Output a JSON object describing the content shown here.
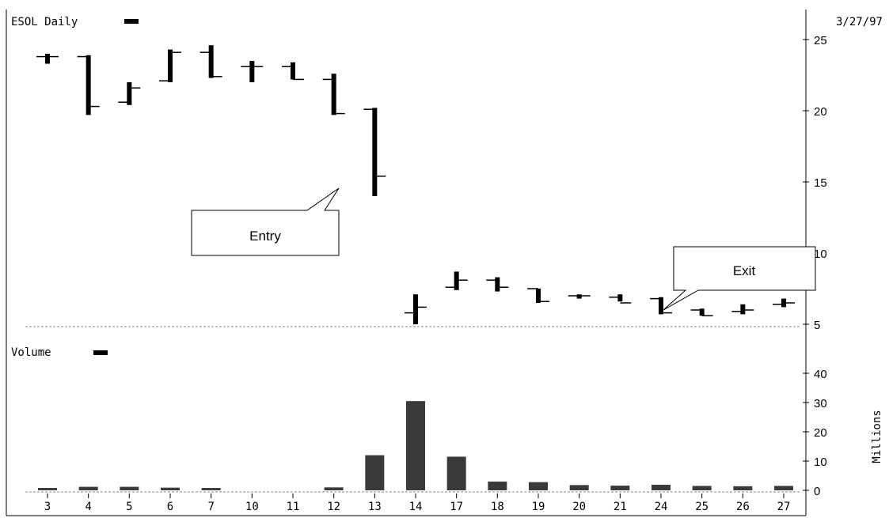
{
  "chart_data": [
    {
      "type": "ohlc",
      "title": "ESOL Daily",
      "date": "3/27/97",
      "ylim": [
        5,
        25
      ],
      "yticks": [
        5,
        10,
        15,
        20,
        25
      ],
      "categories": [
        "3",
        "4",
        "5",
        "6",
        "7",
        "10",
        "11",
        "12",
        "13",
        "14",
        "17",
        "18",
        "19",
        "20",
        "21",
        "24",
        "25",
        "26",
        "27"
      ],
      "series": [
        {
          "open": [
            23.8,
            23.8,
            20.6,
            22.1,
            24.1,
            23.1,
            23.1,
            22.2,
            20.1,
            5.8,
            7.6,
            8.1,
            7.5,
            7.0,
            6.9,
            6.8,
            6.0,
            5.9,
            6.4
          ],
          "high": [
            24.0,
            23.9,
            22.0,
            24.3,
            24.6,
            23.5,
            23.4,
            22.6,
            20.2,
            7.1,
            8.7,
            8.3,
            7.5,
            7.1,
            7.1,
            6.9,
            6.1,
            6.4,
            6.8
          ],
          "low": [
            23.3,
            19.7,
            20.4,
            22.0,
            22.3,
            22.0,
            22.2,
            19.7,
            14.0,
            5.0,
            7.4,
            7.3,
            6.5,
            6.8,
            6.6,
            5.7,
            5.6,
            5.7,
            6.2
          ],
          "close": [
            23.8,
            20.3,
            21.6,
            24.1,
            22.4,
            23.1,
            22.2,
            19.8,
            15.4,
            6.2,
            8.1,
            7.6,
            6.6,
            7.0,
            6.5,
            5.8,
            5.6,
            6.0,
            6.5
          ]
        }
      ],
      "annotations": [
        {
          "text": "Entry",
          "points_to_category": "13",
          "points_to_value": 15.4
        },
        {
          "text": "Exit",
          "points_to_category": "24",
          "points_to_value": 5.8
        }
      ]
    },
    {
      "type": "bar",
      "title": "Volume",
      "ylabel": "Millions",
      "ylim": [
        0,
        40
      ],
      "yticks": [
        0,
        10,
        20,
        30,
        40
      ],
      "categories": [
        "3",
        "4",
        "5",
        "6",
        "7",
        "10",
        "11",
        "12",
        "13",
        "14",
        "17",
        "18",
        "19",
        "20",
        "21",
        "24",
        "25",
        "26",
        "27"
      ],
      "values": [
        0.8,
        1.2,
        1.2,
        0.9,
        0.8,
        0,
        0,
        1.0,
        12.0,
        30.5,
        11.5,
        3.0,
        2.8,
        1.8,
        1.6,
        1.9,
        1.5,
        1.4,
        1.5
      ]
    }
  ]
}
